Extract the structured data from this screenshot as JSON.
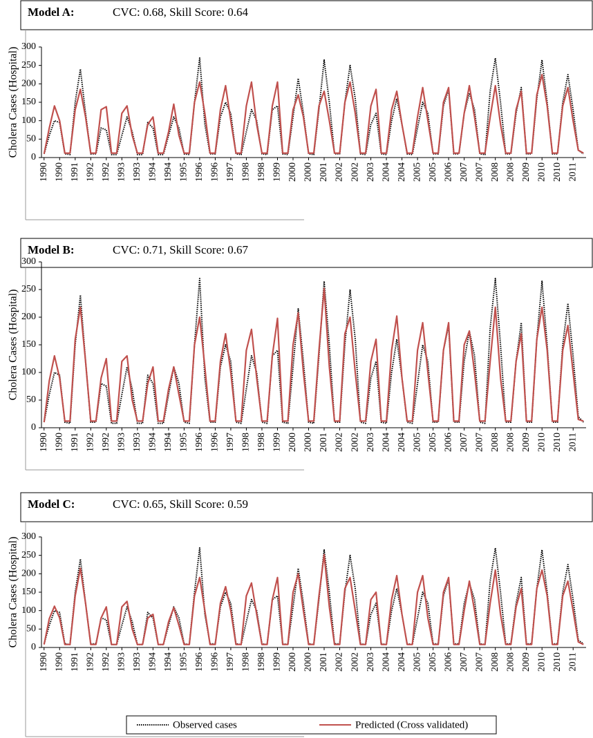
{
  "chart_data": [
    {
      "type": "line",
      "title": "Model A:",
      "subtitle": "CVC: 0.68, Skill Score: 0.64",
      "y_label": "Cholera Cases (Hospital)",
      "ylim": [
        0,
        300
      ],
      "yticks": [
        0,
        50,
        100,
        150,
        200,
        250,
        300
      ],
      "categories": [
        "1990",
        null,
        null,
        "1990",
        null,
        null,
        "1991",
        null,
        null,
        "1992",
        null,
        null,
        "1992",
        null,
        null,
        "1993",
        null,
        null,
        "1993",
        null,
        null,
        "1994",
        null,
        null,
        "1994",
        null,
        null,
        "1995",
        null,
        null,
        "1996",
        null,
        null,
        "1996",
        null,
        null,
        "1997",
        null,
        null,
        "1998",
        null,
        null,
        "1998",
        null,
        null,
        "1999",
        null,
        null,
        "2000",
        null,
        null,
        "2000",
        null,
        null,
        "2001",
        null,
        null,
        "2002",
        null,
        null,
        "2002",
        null,
        null,
        "2003",
        null,
        null,
        "2004",
        null,
        null,
        "2004",
        null,
        null,
        "2005",
        null,
        null,
        "2005",
        null,
        null,
        "2006",
        null,
        null,
        "2007",
        null,
        null,
        "2007",
        null,
        null,
        "2008",
        null,
        null,
        "2008",
        null,
        null,
        "2009",
        null,
        null,
        "2010",
        null,
        null,
        "2010",
        null,
        null,
        "2011",
        null,
        null
      ],
      "series": [
        {
          "color": "#000000",
          "line_style": "dotted",
          "values": [
            10,
            60,
            100,
            95,
            10,
            8,
            150,
            240,
            120,
            10,
            10,
            80,
            75,
            8,
            8,
            60,
            110,
            70,
            8,
            8,
            95,
            80,
            8,
            8,
            60,
            110,
            80,
            10,
            8,
            150,
            270,
            90,
            10,
            10,
            110,
            150,
            120,
            10,
            8,
            70,
            130,
            100,
            10,
            8,
            130,
            140,
            10,
            8,
            110,
            215,
            120,
            10,
            8,
            130,
            265,
            150,
            10,
            10,
            150,
            250,
            160,
            10,
            8,
            90,
            120,
            10,
            8,
            100,
            160,
            90,
            10,
            8,
            80,
            150,
            120,
            10,
            10,
            140,
            185,
            10,
            10,
            120,
            175,
            130,
            10,
            8,
            180,
            270,
            150,
            10,
            10,
            120,
            190,
            10,
            10,
            160,
            265,
            150,
            10,
            10,
            150,
            225,
            130,
            20,
            10
          ]
        },
        {
          "color": "#c0504d",
          "line_style": "solid",
          "values": [
            10,
            80,
            140,
            100,
            12,
            12,
            130,
            185,
            110,
            12,
            12,
            130,
            138,
            12,
            12,
            120,
            140,
            60,
            12,
            12,
            90,
            110,
            12,
            12,
            70,
            145,
            60,
            12,
            12,
            150,
            205,
            120,
            12,
            12,
            130,
            195,
            100,
            12,
            12,
            140,
            205,
            90,
            12,
            12,
            140,
            205,
            12,
            12,
            130,
            170,
            110,
            12,
            12,
            140,
            180,
            100,
            12,
            12,
            150,
            205,
            120,
            12,
            12,
            140,
            185,
            12,
            12,
            130,
            180,
            90,
            12,
            12,
            110,
            190,
            100,
            12,
            12,
            150,
            190,
            12,
            12,
            120,
            195,
            110,
            12,
            12,
            110,
            195,
            90,
            12,
            12,
            130,
            180,
            12,
            12,
            170,
            225,
            140,
            12,
            12,
            140,
            190,
            100,
            20,
            12
          ]
        }
      ]
    },
    {
      "type": "line",
      "title": "Model B:",
      "subtitle": "CVC: 0.71, Skill Score: 0.67",
      "y_label": "Cholera Cases (Hospital)",
      "ylim": [
        0,
        300
      ],
      "yticks": [
        0,
        50,
        100,
        150,
        200,
        250,
        300
      ],
      "categories": [
        "1990",
        null,
        null,
        "1990",
        null,
        null,
        "1991",
        null,
        null,
        "1992",
        null,
        null,
        "1992",
        null,
        null,
        "1993",
        null,
        null,
        "1993",
        null,
        null,
        "1994",
        null,
        null,
        "1994",
        null,
        null,
        "1995",
        null,
        null,
        "1996",
        null,
        null,
        "1996",
        null,
        null,
        "1997",
        null,
        null,
        "1998",
        null,
        null,
        "1998",
        null,
        null,
        "1999",
        null,
        null,
        "2000",
        null,
        null,
        "2000",
        null,
        null,
        "2001",
        null,
        null,
        "2002",
        null,
        null,
        "2002",
        null,
        null,
        "2003",
        null,
        null,
        "2004",
        null,
        null,
        "2004",
        null,
        null,
        "2005",
        null,
        null,
        "2005",
        null,
        null,
        "2006",
        null,
        null,
        "2007",
        null,
        null,
        "2007",
        null,
        null,
        "2008",
        null,
        null,
        "2008",
        null,
        null,
        "2009",
        null,
        null,
        "2010",
        null,
        null,
        "2010",
        null,
        null,
        "2011",
        null,
        null
      ],
      "series": [
        {
          "color": "#000000",
          "line_style": "dotted",
          "values": [
            10,
            60,
            100,
            95,
            10,
            8,
            150,
            240,
            120,
            10,
            10,
            80,
            75,
            8,
            8,
            60,
            110,
            70,
            8,
            8,
            95,
            80,
            8,
            8,
            60,
            110,
            80,
            10,
            8,
            150,
            270,
            90,
            10,
            10,
            110,
            150,
            120,
            10,
            8,
            70,
            130,
            100,
            10,
            8,
            130,
            140,
            10,
            8,
            110,
            215,
            120,
            10,
            8,
            130,
            265,
            150,
            10,
            10,
            150,
            250,
            160,
            10,
            8,
            90,
            120,
            10,
            8,
            100,
            160,
            90,
            10,
            8,
            80,
            150,
            120,
            10,
            10,
            140,
            185,
            10,
            10,
            120,
            175,
            130,
            10,
            8,
            180,
            270,
            150,
            10,
            10,
            120,
            190,
            10,
            10,
            160,
            265,
            150,
            10,
            10,
            150,
            225,
            130,
            20,
            10
          ]
        },
        {
          "color": "#c0504d",
          "line_style": "solid",
          "values": [
            10,
            85,
            130,
            90,
            12,
            12,
            160,
            218,
            120,
            12,
            12,
            90,
            125,
            12,
            12,
            120,
            130,
            50,
            12,
            12,
            80,
            110,
            12,
            12,
            70,
            110,
            60,
            12,
            12,
            150,
            200,
            110,
            12,
            12,
            120,
            170,
            100,
            12,
            12,
            140,
            178,
            90,
            12,
            12,
            130,
            198,
            12,
            12,
            150,
            208,
            100,
            12,
            12,
            140,
            252,
            110,
            12,
            12,
            170,
            200,
            100,
            12,
            12,
            120,
            160,
            12,
            12,
            140,
            202,
            90,
            12,
            12,
            140,
            190,
            100,
            12,
            12,
            140,
            190,
            12,
            12,
            150,
            175,
            100,
            12,
            12,
            120,
            218,
            90,
            12,
            12,
            120,
            170,
            12,
            12,
            160,
            218,
            140,
            12,
            12,
            140,
            185,
            100,
            15,
            12
          ]
        }
      ]
    },
    {
      "type": "line",
      "title": "Model C:",
      "subtitle": "CVC: 0.65, Skill Score: 0.59",
      "y_label": "Cholera Cases (Hospital)",
      "ylim": [
        0,
        300
      ],
      "yticks": [
        0,
        50,
        100,
        150,
        200,
        250,
        300
      ],
      "categories": [
        "1990",
        null,
        null,
        "1990",
        null,
        null,
        "1991",
        null,
        null,
        "1992",
        null,
        null,
        "1992",
        null,
        null,
        "1993",
        null,
        null,
        "1993",
        null,
        null,
        "1994",
        null,
        null,
        "1994",
        null,
        null,
        "1995",
        null,
        null,
        "1996",
        null,
        null,
        "1996",
        null,
        null,
        "1997",
        null,
        null,
        "1998",
        null,
        null,
        "1998",
        null,
        null,
        "1999",
        null,
        null,
        "2000",
        null,
        null,
        "2000",
        null,
        null,
        "2001",
        null,
        null,
        "2002",
        null,
        null,
        "2002",
        null,
        null,
        "2003",
        null,
        null,
        "2004",
        null,
        null,
        "2004",
        null,
        null,
        "2005",
        null,
        null,
        "2005",
        null,
        null,
        "2006",
        null,
        null,
        "2007",
        null,
        null,
        "2007",
        null,
        null,
        "2008",
        null,
        null,
        "2008",
        null,
        null,
        "2009",
        null,
        null,
        "2010",
        null,
        null,
        "2010",
        null,
        null,
        "2011",
        null,
        null
      ],
      "series": [
        {
          "name": "Observed cases",
          "color": "#000000",
          "line_style": "dotted",
          "values": [
            10,
            60,
            100,
            95,
            10,
            8,
            150,
            240,
            120,
            10,
            10,
            80,
            75,
            8,
            8,
            60,
            110,
            70,
            8,
            8,
            95,
            80,
            8,
            8,
            60,
            110,
            80,
            10,
            8,
            150,
            270,
            90,
            10,
            10,
            110,
            150,
            120,
            10,
            8,
            70,
            130,
            100,
            10,
            8,
            130,
            140,
            10,
            8,
            110,
            215,
            120,
            10,
            8,
            130,
            265,
            150,
            10,
            10,
            150,
            250,
            160,
            10,
            8,
            90,
            120,
            10,
            8,
            100,
            160,
            90,
            10,
            8,
            80,
            150,
            120,
            10,
            10,
            140,
            185,
            10,
            10,
            120,
            175,
            130,
            10,
            8,
            180,
            270,
            150,
            10,
            10,
            120,
            190,
            10,
            10,
            160,
            265,
            150,
            10,
            10,
            150,
            225,
            130,
            20,
            10
          ]
        },
        {
          "name": "Predicted (Cross validated)",
          "color": "#c0504d",
          "line_style": "solid",
          "values": [
            8,
            78,
            112,
            80,
            8,
            8,
            140,
            215,
            120,
            8,
            8,
            80,
            110,
            8,
            8,
            110,
            125,
            50,
            8,
            8,
            80,
            90,
            8,
            8,
            70,
            108,
            60,
            8,
            8,
            140,
            190,
            100,
            8,
            8,
            120,
            165,
            100,
            8,
            8,
            140,
            175,
            90,
            8,
            8,
            130,
            190,
            8,
            8,
            150,
            200,
            100,
            8,
            8,
            140,
            252,
            110,
            8,
            8,
            160,
            190,
            100,
            8,
            8,
            130,
            150,
            8,
            8,
            130,
            195,
            90,
            8,
            8,
            150,
            195,
            80,
            8,
            8,
            150,
            190,
            8,
            8,
            100,
            180,
            100,
            8,
            8,
            120,
            210,
            90,
            8,
            8,
            110,
            160,
            8,
            8,
            160,
            210,
            140,
            8,
            8,
            140,
            180,
            100,
            15,
            8
          ]
        }
      ]
    }
  ]
}
